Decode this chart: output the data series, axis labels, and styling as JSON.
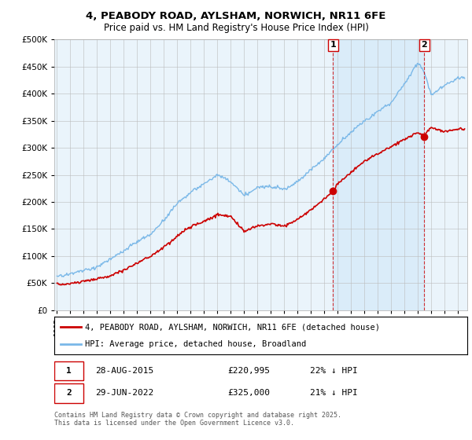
{
  "title1": "4, PEABODY ROAD, AYLSHAM, NORWICH, NR11 6FE",
  "title2": "Price paid vs. HM Land Registry's House Price Index (HPI)",
  "ylim": [
    0,
    500000
  ],
  "yticks": [
    0,
    50000,
    100000,
    150000,
    200000,
    250000,
    300000,
    350000,
    400000,
    450000,
    500000
  ],
  "hpi_color": "#7ab8e8",
  "price_color": "#cc0000",
  "vline_color": "#cc0000",
  "shade_color": "#d0e8f8",
  "marker1_x": 2015.65,
  "marker1_price": 220995,
  "marker2_x": 2022.49,
  "marker2_price": 325000,
  "legend1_text": "4, PEABODY ROAD, AYLSHAM, NORWICH, NR11 6FE (detached house)",
  "legend2_text": "HPI: Average price, detached house, Broadland",
  "footnote": "Contains HM Land Registry data © Crown copyright and database right 2025.\nThis data is licensed under the Open Government Licence v3.0.",
  "bg_color": "#ffffff",
  "plot_bg_color": "#eaf4fb",
  "grid_color": "#bbbbbb",
  "hpi_waypoints_x": [
    1995,
    1996,
    1997,
    1998,
    1999,
    2000,
    2001,
    2002,
    2003,
    2004,
    2005,
    2006,
    2007,
    2008,
    2009,
    2010,
    2011,
    2012,
    2013,
    2014,
    2015,
    2016,
    2017,
    2018,
    2019,
    2020,
    2021,
    2022,
    2022.5,
    2023,
    2024,
    2025
  ],
  "hpi_waypoints_y": [
    62000,
    67000,
    73000,
    80000,
    92000,
    108000,
    125000,
    138000,
    165000,
    195000,
    215000,
    230000,
    248000,
    235000,
    210000,
    225000,
    228000,
    222000,
    238000,
    258000,
    280000,
    305000,
    330000,
    350000,
    368000,
    385000,
    420000,
    460000,
    440000,
    400000,
    415000,
    430000
  ],
  "price_waypoints_x": [
    1995,
    1996,
    1997,
    1998,
    1999,
    2000,
    2001,
    2002,
    2003,
    2004,
    2005,
    2006,
    2007,
    2008,
    2009,
    2010,
    2011,
    2012,
    2013,
    2014,
    2015,
    2015.65,
    2016,
    2017,
    2018,
    2019,
    2020,
    2021,
    2022,
    2022.49,
    2023,
    2024,
    2025
  ],
  "price_waypoints_y": [
    48000,
    50000,
    54000,
    59000,
    65000,
    75000,
    88000,
    100000,
    118000,
    138000,
    155000,
    165000,
    178000,
    175000,
    148000,
    158000,
    162000,
    157000,
    170000,
    188000,
    208000,
    220995,
    235000,
    258000,
    278000,
    292000,
    305000,
    318000,
    330000,
    325000,
    340000,
    330000,
    335000
  ]
}
